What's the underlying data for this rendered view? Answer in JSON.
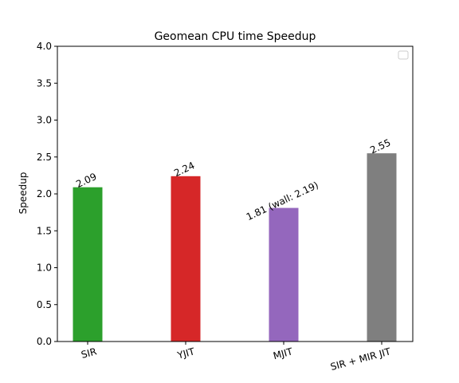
{
  "chart_data": {
    "type": "bar",
    "title": "Geomean CPU time Speedup",
    "xlabel": "",
    "ylabel": "Speedup",
    "ylim": [
      0,
      4.0
    ],
    "yticks": [
      "0.0",
      "0.5",
      "1.0",
      "1.5",
      "2.0",
      "2.5",
      "3.0",
      "3.5",
      "4.0"
    ],
    "grid": false,
    "legend": "top-right (empty)",
    "categories": [
      "SIR",
      "YJIT",
      "MJIT",
      "SIR + MIR JIT"
    ],
    "values": [
      2.09,
      2.24,
      1.81,
      2.55
    ],
    "data_labels": [
      "2.09",
      "2.24",
      "1.81 (wall: 2.19)",
      "2.55"
    ],
    "colors": [
      "#2ca02c",
      "#d62728",
      "#9467bd",
      "#7f7f7f"
    ]
  }
}
